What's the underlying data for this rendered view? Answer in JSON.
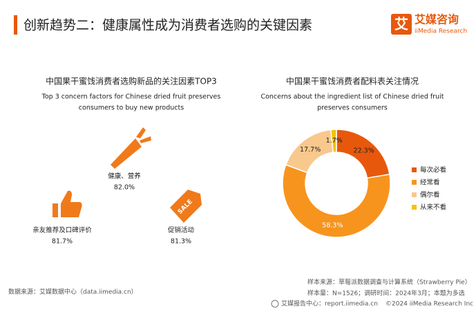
{
  "header": {
    "title": "创新趋势二：健康属性成为消费者选购的关键因素",
    "brand": "艾媒咨询",
    "brand_en": "iiMedia Research",
    "logo_char": "艾"
  },
  "left_panel": {
    "title": "中国果干蜜饯消费者选购新品的关注因素TOP3",
    "subtitle": [
      "Top 3 concern factors for Chinese dried fruit preserves",
      "consumers to buy new products"
    ],
    "factors": [
      {
        "label": "健康、营养",
        "value": "82.0%"
      },
      {
        "label": "亲友推荐及口碑评价",
        "value": "81.7%"
      },
      {
        "label": "促销活动",
        "value": "81.3%"
      }
    ],
    "tag": "SALE"
  },
  "chart_data": {
    "type": "donut",
    "title": "中国果干蜜饯消费者配料表关注情况",
    "subtitle": [
      "Concerns about the ingredient list of Chinese dried fruit",
      "preserves consumers"
    ],
    "categories": [
      "每次必看",
      "经常看",
      "偶尔看",
      "从来不看"
    ],
    "values": [
      22.3,
      58.3,
      17.7,
      1.7
    ],
    "value_labels": [
      "22.3%",
      "58.3%",
      "17.7%",
      "1.7%"
    ],
    "colors": [
      "#e8580c",
      "#f7941d",
      "#f8c88d",
      "#f5c300"
    ],
    "legend": "right"
  },
  "footer": {
    "source": "数据来源：艾媒数据中心（data.iimedia.cn）",
    "sample_source": "样本来源：草莓派数据调查与计算系统（Strawberry Pie）",
    "sample_info": "样本量：N=1526；调研时间：2024年3月；本题为多选",
    "report_center": "艾媒报告中心：report.iimedia.cn",
    "copyright": "©2024  iiMedia Research Inc"
  }
}
